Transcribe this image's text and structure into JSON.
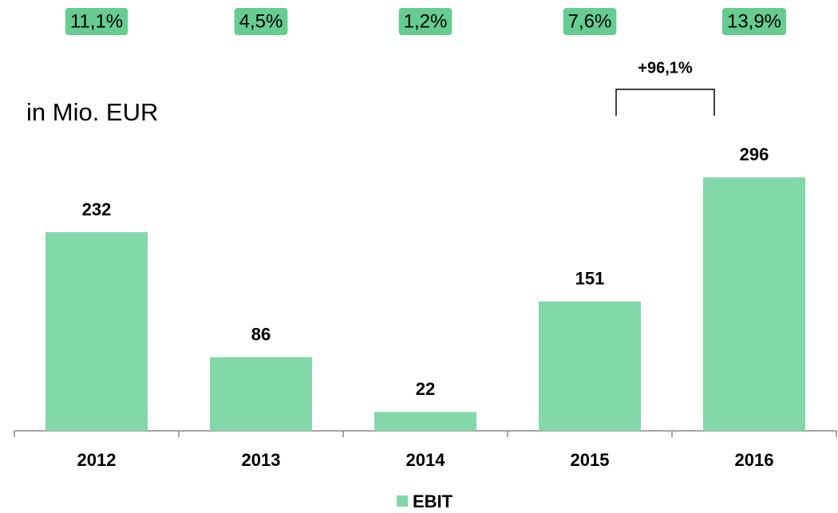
{
  "chart_data": {
    "type": "bar",
    "unit_label": "in Mio. EUR",
    "categories": [
      "2012",
      "2013",
      "2014",
      "2015",
      "2016"
    ],
    "series": [
      {
        "name": "EBIT",
        "color": "#83d8a9",
        "values": [
          232,
          86,
          22,
          151,
          296
        ]
      }
    ],
    "ylim": [
      0,
      300
    ],
    "margin_annotations": [
      "11,1%",
      "4,5%",
      "1,2%",
      "7,6%",
      "13,9%"
    ],
    "margin_color": "#66cc91",
    "growth_annotation": "+96,1%",
    "growth_color": "#1fa34f",
    "legend": "bottom"
  }
}
